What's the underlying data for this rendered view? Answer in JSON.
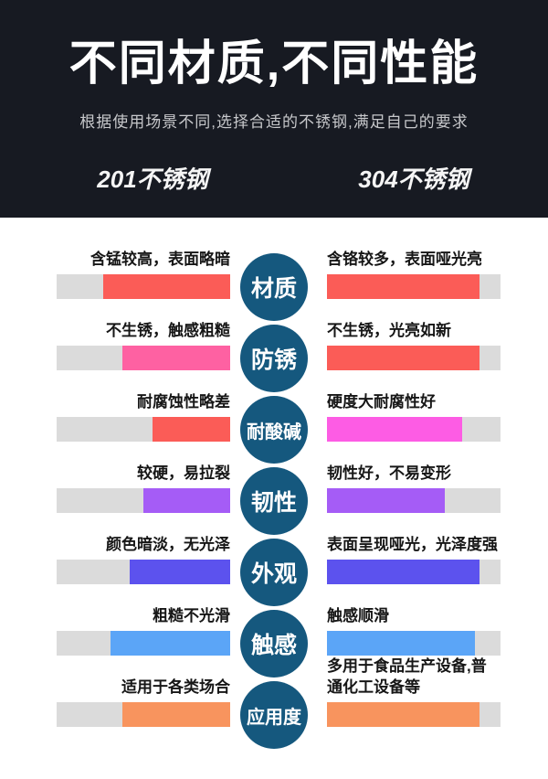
{
  "header": {
    "title": "不同材质,不同性能",
    "subtitle": "根据使用场景不同,选择合适的不锈钢,满足自己的要求",
    "left_column": "201不锈钢",
    "right_column": "304不锈钢",
    "bg_color": "#171a22"
  },
  "colors": {
    "track_gray": "#dbdbdb",
    "circle_teal": "#15587e",
    "red": "#fb5c57",
    "pink": "#fe61a2",
    "magenta": "#fd5ce4",
    "purple": "#a55cf6",
    "indigo": "#5c52ee",
    "blue": "#5ba5f7",
    "orange": "#f8945e"
  },
  "rows": [
    {
      "category": "材质",
      "left": {
        "label": "含锰较高，表面略暗",
        "fill": "73%",
        "color": "#fb5c57"
      },
      "right": {
        "label": "含铬较多，表面哑光亮",
        "fill": "88%",
        "color": "#fb5c57"
      }
    },
    {
      "category": "防锈",
      "left": {
        "label": "不生锈，触感粗糙",
        "fill": "62%",
        "color": "#fe61a2"
      },
      "right": {
        "label": "不生锈，光亮如新",
        "fill": "88%",
        "color": "#fb5c57"
      }
    },
    {
      "category": "耐酸碱",
      "left": {
        "label": "耐腐蚀性略差",
        "fill": "45%",
        "color": "#fb5c57"
      },
      "right": {
        "label": "硬度大耐腐性好",
        "fill": "78%",
        "color": "#fd5ce4"
      }
    },
    {
      "category": "韧性",
      "left": {
        "label": "较硬，易拉裂",
        "fill": "50%",
        "color": "#a55cf6"
      },
      "right": {
        "label": "韧性好，不易变形",
        "fill": "68%",
        "color": "#a55cf6"
      }
    },
    {
      "category": "外观",
      "left": {
        "label": "颜色暗淡，无光泽",
        "fill": "58%",
        "color": "#5c52ee"
      },
      "right": {
        "label": "表面呈现哑光，光泽度强",
        "fill": "88%",
        "color": "#5c52ee"
      }
    },
    {
      "category": "触感",
      "left": {
        "label": "粗糙不光滑",
        "fill": "69%",
        "color": "#5ba5f7"
      },
      "right": {
        "label": "触感顺滑",
        "fill": "85%",
        "color": "#5ba5f7"
      }
    },
    {
      "category": "应用度",
      "left": {
        "label": "适用于各类场合",
        "fill": "62%",
        "color": "#f8945e"
      },
      "right": {
        "label": "多用于食品生产设备,普通化工设备等",
        "fill": "88%",
        "color": "#f8945e"
      }
    }
  ]
}
